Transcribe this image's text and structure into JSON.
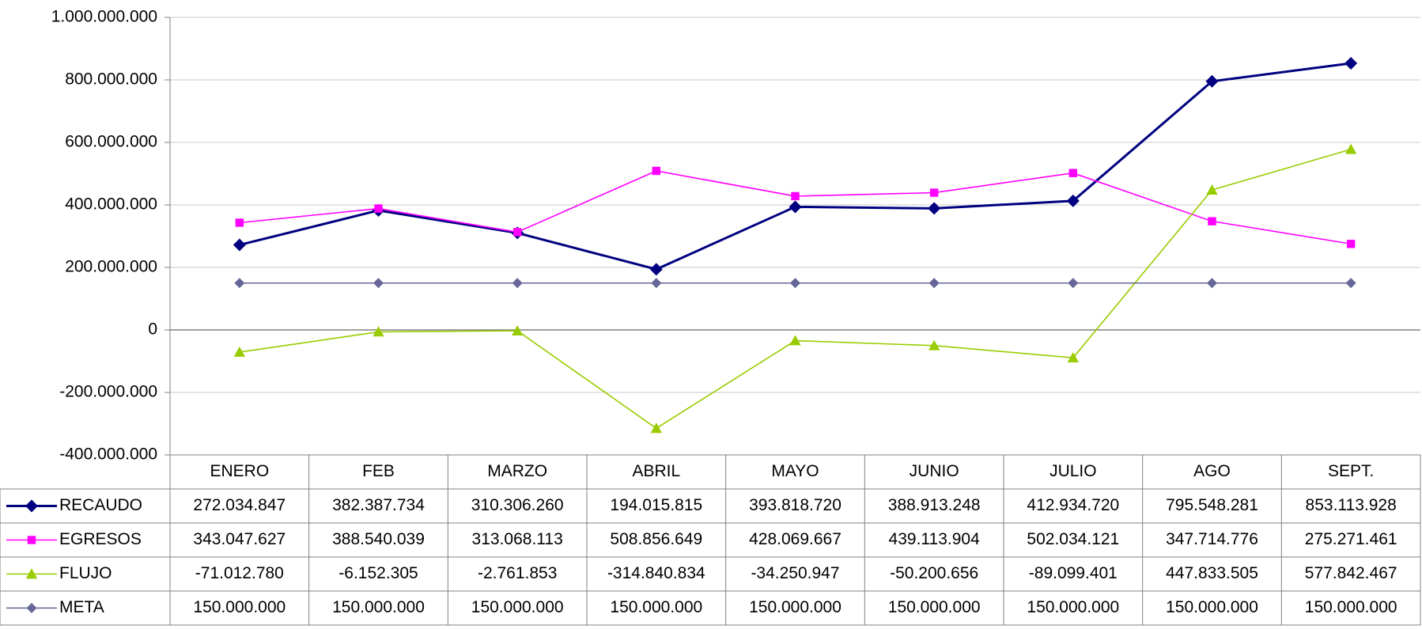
{
  "chart_data": {
    "type": "line",
    "categories": [
      "ENERO",
      "FEB",
      "MARZO",
      "ABRIL",
      "MAYO",
      "JUNIO",
      "JULIO",
      "AGO",
      "SEPT."
    ],
    "series": [
      {
        "name": "RECAUDO",
        "color": "#000080",
        "marker": "diamond",
        "values": [
          272034847,
          382387734,
          310306260,
          194015815,
          393818720,
          388913248,
          412934720,
          795548281,
          853113928
        ],
        "value_labels": [
          "272.034.847",
          "382.387.734",
          "310.306.260",
          "194.015.815",
          "393.818.720",
          "388.913.248",
          "412.934.720",
          "795.548.281",
          "853.113.928"
        ]
      },
      {
        "name": "EGRESOS",
        "color": "#ff00ff",
        "marker": "square",
        "values": [
          343047627,
          388540039,
          313068113,
          508856649,
          428069667,
          439113904,
          502034121,
          347714776,
          275271461
        ],
        "value_labels": [
          "343.047.627",
          "388.540.039",
          "313.068.113",
          "508.856.649",
          "428.069.667",
          "439.113.904",
          "502.034.121",
          "347.714.776",
          "275.271.461"
        ]
      },
      {
        "name": "FLUJO",
        "color": "#99cc00",
        "marker": "triangle",
        "values": [
          -71012780,
          -6152305,
          -2761853,
          -314840834,
          -34250947,
          -50200656,
          -89099401,
          447833505,
          577842467
        ],
        "value_labels": [
          "-71.012.780",
          "-6.152.305",
          "-2.761.853",
          "-314.840.834",
          "-34.250.947",
          "-50.200.656",
          "-89.099.401",
          "447.833.505",
          "577.842.467"
        ]
      },
      {
        "name": "META",
        "color": "#666699",
        "marker": "diamond",
        "values": [
          150000000,
          150000000,
          150000000,
          150000000,
          150000000,
          150000000,
          150000000,
          150000000,
          150000000
        ],
        "value_labels": [
          "150.000.000",
          "150.000.000",
          "150.000.000",
          "150.000.000",
          "150.000.000",
          "150.000.000",
          "150.000.000",
          "150.000.000",
          "150.000.000"
        ]
      }
    ],
    "ylim": [
      -400000000,
      1000000000
    ],
    "yticks": [
      {
        "value": -400000000,
        "label": "-400.000.000"
      },
      {
        "value": -200000000,
        "label": "-200.000.000"
      },
      0,
      {
        "value": 200000000,
        "label": "200.000.000"
      },
      {
        "value": 400000000,
        "label": "400.000.000"
      },
      {
        "value": 600000000,
        "label": "600.000.000"
      },
      {
        "value": 800000000,
        "label": "800.000.000"
      },
      {
        "value": 1000000000,
        "label": "1.000.000.000"
      }
    ],
    "grid": true
  }
}
